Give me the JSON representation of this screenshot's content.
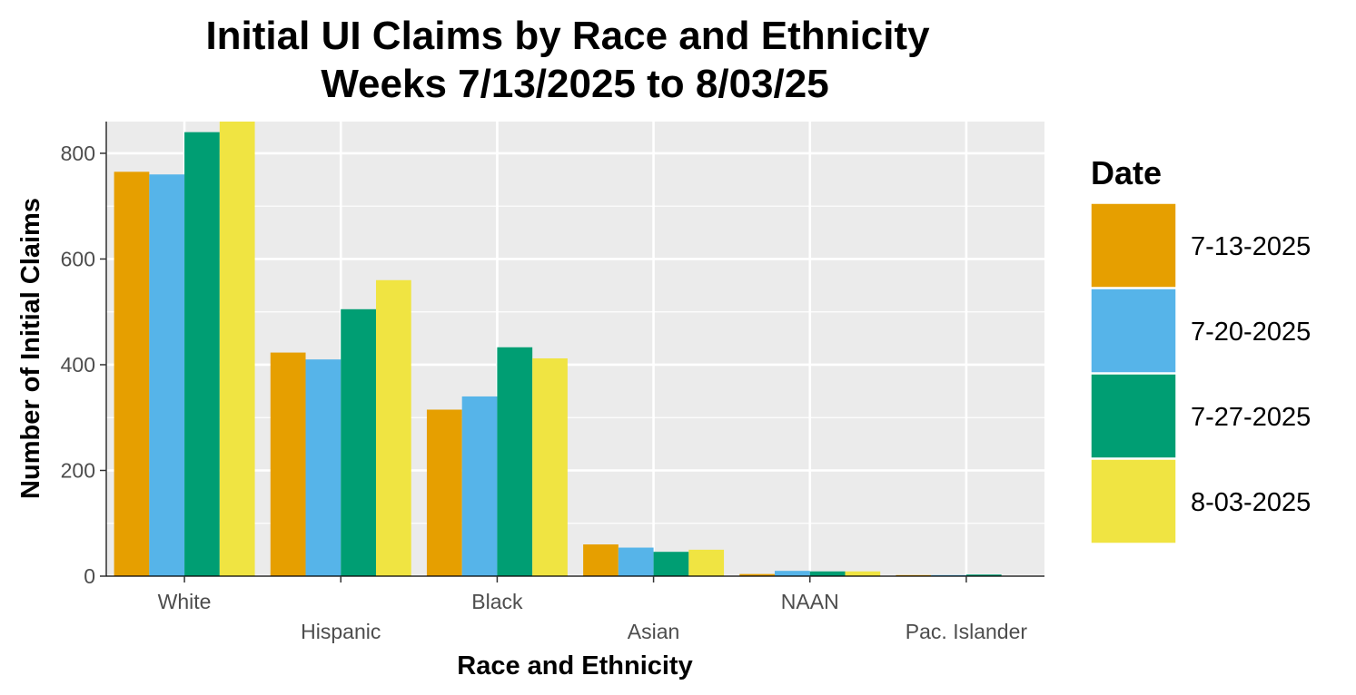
{
  "chart_data": {
    "type": "bar",
    "title_lines": [
      "Initial UI Claims by Race and Ethnicity",
      "Weeks  7/13/2025 to 8/03/25"
    ],
    "xlabel": "Race and Ethnicity",
    "ylabel": "Number of Initial Claims",
    "categories": [
      "White",
      "Hispanic",
      "Black",
      "Asian",
      "NAAN",
      "Pac. Islander"
    ],
    "legend_title": "Date",
    "legend_position": "right",
    "grid": true,
    "ylim": [
      0,
      860
    ],
    "yticks": [
      0,
      200,
      400,
      600,
      800
    ],
    "series": [
      {
        "name": "7-13-2025",
        "color": "#E69F00",
        "values": [
          765,
          423,
          315,
          60,
          4,
          2
        ]
      },
      {
        "name": "7-20-2025",
        "color": "#56B4E9",
        "values": [
          760,
          410,
          340,
          54,
          10,
          2
        ]
      },
      {
        "name": "7-27-2025",
        "color": "#009E73",
        "values": [
          840,
          505,
          433,
          46,
          9,
          3
        ]
      },
      {
        "name": "8-03-2025",
        "color": "#F0E442",
        "values": [
          860,
          560,
          412,
          50,
          9,
          0
        ]
      }
    ]
  }
}
